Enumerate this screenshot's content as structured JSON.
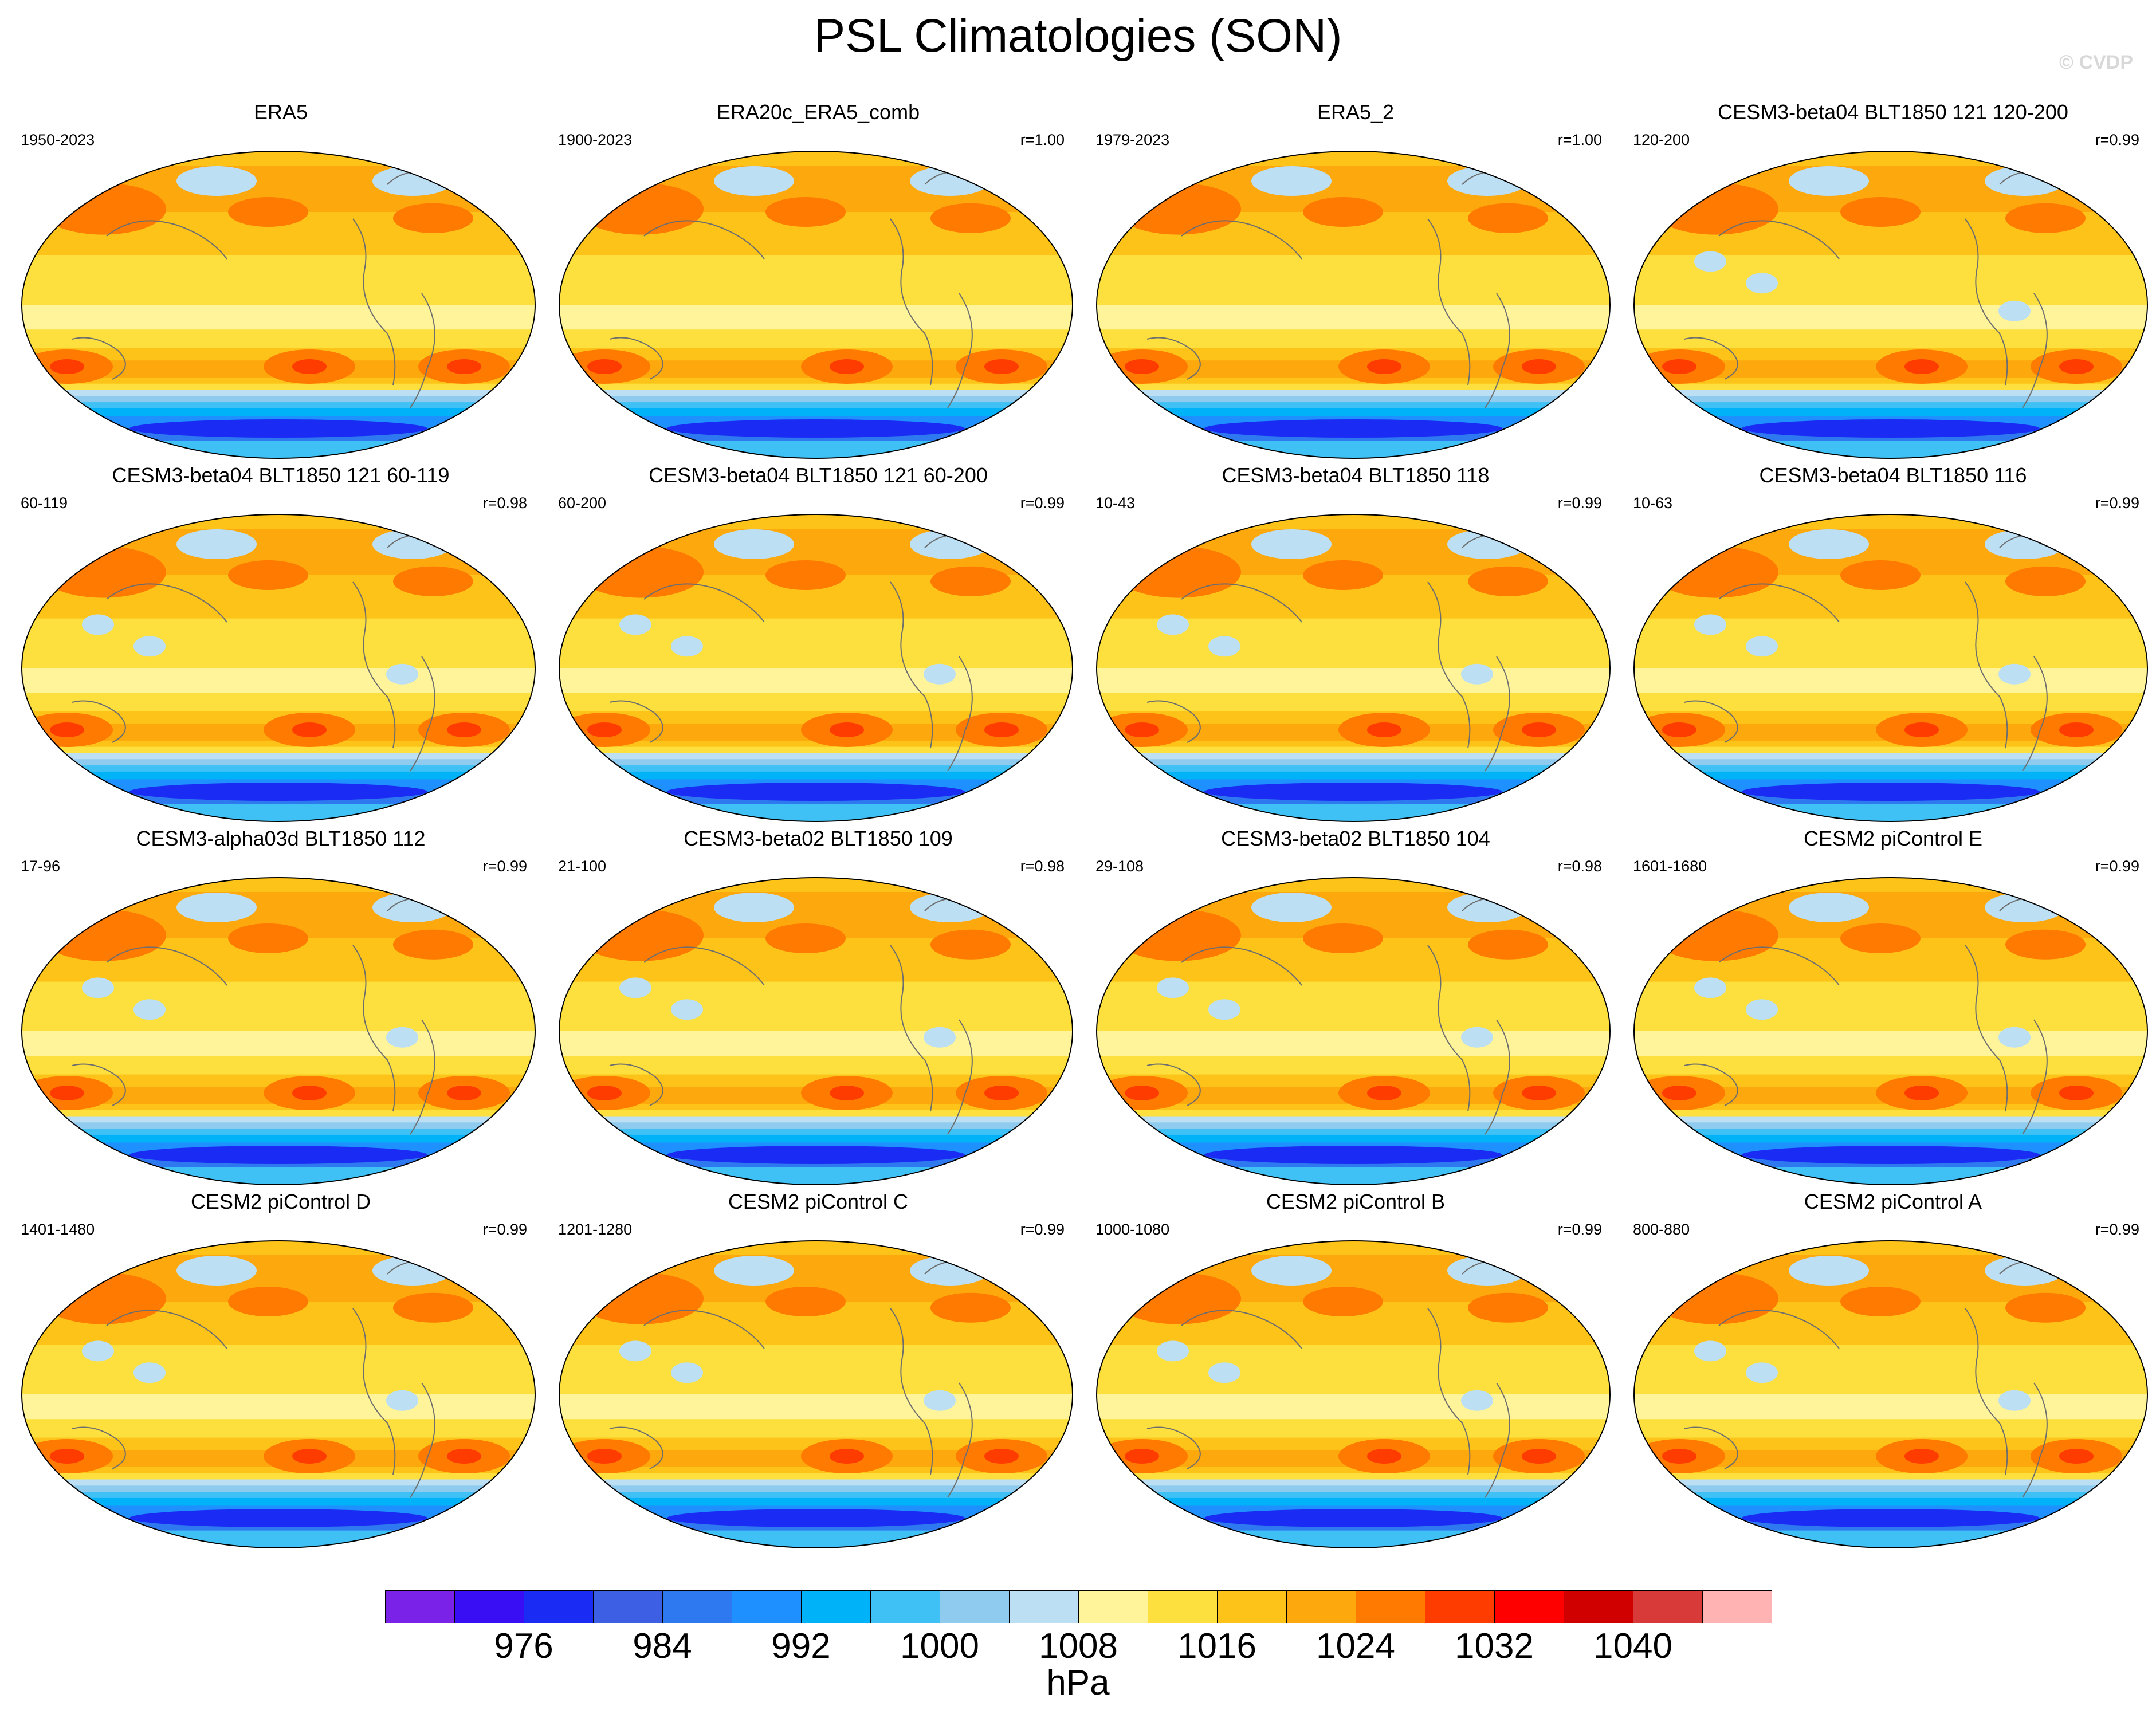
{
  "title": "PSL Climatologies (SON)",
  "copyright": "© CVDP",
  "chart_data": {
    "type": "heatmap",
    "title": "PSL Climatologies (SON)",
    "variable": "PSL",
    "season": "SON",
    "units": "hPa",
    "colorbar": {
      "ticks": [
        976,
        984,
        992,
        1000,
        1008,
        1016,
        1024,
        1032,
        1040
      ],
      "levels": [
        972,
        976,
        980,
        984,
        988,
        992,
        996,
        1000,
        1004,
        1008,
        1012,
        1016,
        1020,
        1024,
        1028,
        1032,
        1036,
        1040,
        1044
      ],
      "colors": [
        "#7b22e8",
        "#3a0ef4",
        "#1a2cf3",
        "#3c5fe3",
        "#2f79f0",
        "#1e90ff",
        "#00b2f7",
        "#3fc1f5",
        "#8ecbef",
        "#bcdff3",
        "#fff49a",
        "#fde03e",
        "#fdc318",
        "#fda80c",
        "#ff7a00",
        "#ff3c00",
        "#ff0000",
        "#d10000",
        "#d83a3a",
        "#ffb3b3"
      ]
    },
    "panels": [
      {
        "name": "ERA5",
        "years": "1950-2023",
        "r": ""
      },
      {
        "name": "ERA20c_ERA5_comb",
        "years": "1900-2023",
        "r": "r=1.00"
      },
      {
        "name": "ERA5_2",
        "years": "1979-2023",
        "r": "r=1.00"
      },
      {
        "name": "CESM3-beta04 BLT1850 121 120-200",
        "years": "120-200",
        "r": "r=0.99"
      },
      {
        "name": "CESM3-beta04 BLT1850 121 60-119",
        "years": "60-119",
        "r": "r=0.98"
      },
      {
        "name": "CESM3-beta04 BLT1850 121 60-200",
        "years": "60-200",
        "r": "r=0.99"
      },
      {
        "name": "CESM3-beta04 BLT1850 118",
        "years": "10-43",
        "r": "r=0.99"
      },
      {
        "name": "CESM3-beta04 BLT1850 116",
        "years": "10-63",
        "r": "r=0.99"
      },
      {
        "name": "CESM3-alpha03d BLT1850 112",
        "years": "17-96",
        "r": "r=0.99"
      },
      {
        "name": "CESM3-beta02 BLT1850 109",
        "years": "21-100",
        "r": "r=0.98"
      },
      {
        "name": "CESM3-beta02 BLT1850 104",
        "years": "29-108",
        "r": "r=0.98"
      },
      {
        "name": "CESM2 piControl E",
        "years": "1601-1680",
        "r": "r=0.99"
      },
      {
        "name": "CESM2 piControl D",
        "years": "1401-1480",
        "r": "r=0.99"
      },
      {
        "name": "CESM2 piControl C",
        "years": "1201-1280",
        "r": "r=0.99"
      },
      {
        "name": "CESM2 piControl B",
        "years": "1000-1080",
        "r": "r=0.99"
      },
      {
        "name": "CESM2 piControl A",
        "years": "800-880",
        "r": "r=0.99"
      }
    ]
  }
}
